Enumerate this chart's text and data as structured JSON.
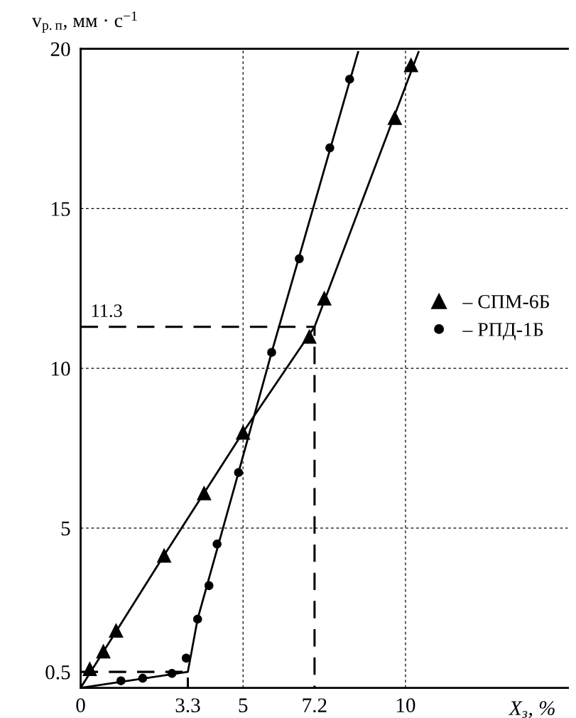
{
  "chart_data": {
    "type": "scatter",
    "xlabel": "X$_{з}$, %",
    "ylabel": "v$_{р.п}$, мм · с$^{−1}$",
    "xlim": [
      0,
      15
    ],
    "ylim": [
      0,
      20
    ],
    "xticks": [
      0,
      3.3,
      5,
      7.2,
      10
    ],
    "yticks": [
      0.5,
      5,
      10,
      15,
      20
    ],
    "grid": false,
    "legend": "right",
    "ref_lines": [
      {
        "axis": "x",
        "value": 5,
        "color": "#000000",
        "line_style": "dotted"
      },
      {
        "axis": "x",
        "value": 10,
        "color": "#000000",
        "line_style": "dotted"
      },
      {
        "axis": "y",
        "value": 5,
        "color": "#000000",
        "line_style": "dotted"
      },
      {
        "axis": "y",
        "value": 10,
        "color": "#000000",
        "line_style": "dotted"
      },
      {
        "axis": "y",
        "value": 15,
        "color": "#000000",
        "line_style": "dotted"
      }
    ],
    "annotations": [
      {
        "text": "11.3",
        "x": 0.8,
        "y": 11.3
      }
    ],
    "series": [
      {
        "name": "– СПМ-6Б",
        "marker": "triangle",
        "color": "#000000",
        "x": [
          0.28,
          0.7,
          1.09,
          2.57,
          3.8,
          5.0,
          7.04,
          7.5,
          9.67,
          10.17
        ],
        "values": [
          0.6,
          1.15,
          1.8,
          4.15,
          6.1,
          8.0,
          11.0,
          12.2,
          17.85,
          19.5
        ]
      },
      {
        "name": "– РПД-1Б",
        "marker": "circle",
        "color": "#000000",
        "x": [
          1.24,
          1.91,
          2.81,
          3.25,
          3.6,
          3.95,
          4.2,
          4.86,
          5.88,
          6.73,
          7.67,
          8.28
        ],
        "values": [
          0.22,
          0.3,
          0.45,
          0.93,
          2.15,
          3.2,
          4.5,
          6.74,
          10.5,
          13.43,
          16.9,
          19.05
        ]
      },
      {
        "type": "line",
        "marker": "none",
        "line_style": "solid",
        "color": "#000000",
        "x": [
          0,
          2.57,
          5.0,
          7.2,
          10.4
        ],
        "values": [
          0,
          4.15,
          8.0,
          11.3,
          19.9
        ]
      },
      {
        "type": "line",
        "marker": "none",
        "line_style": "solid",
        "color": "#000000",
        "x": [
          0,
          3.3,
          3.6,
          4.86,
          5.88,
          8.54
        ],
        "values": [
          0,
          0.5,
          2.15,
          6.74,
          10.5,
          19.9
        ]
      },
      {
        "type": "line",
        "marker": "none",
        "line_style": "dashed",
        "color": "#000000",
        "x": [
          0,
          7.2,
          7.2
        ],
        "values": [
          11.3,
          11.3,
          0
        ]
      },
      {
        "type": "line",
        "marker": "none",
        "line_style": "dashed",
        "color": "#000000",
        "x": [
          0,
          3.3,
          3.3
        ],
        "values": [
          0.5,
          0.5,
          0
        ]
      }
    ]
  }
}
